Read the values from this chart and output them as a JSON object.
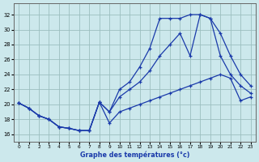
{
  "xlabel": "Graphe des températures (°c)",
  "bg_color": "#cce8ec",
  "grid_color": "#9bbfbf",
  "line_color": "#1a3aaa",
  "xlim": [
    -0.5,
    23.5
  ],
  "ylim": [
    15.0,
    33.5
  ],
  "xticks": [
    0,
    1,
    2,
    3,
    4,
    5,
    6,
    7,
    8,
    9,
    10,
    11,
    12,
    13,
    14,
    15,
    16,
    17,
    18,
    19,
    20,
    21,
    22,
    23
  ],
  "yticks": [
    16,
    18,
    20,
    22,
    24,
    26,
    28,
    30,
    32
  ],
  "line1_x": [
    0,
    1,
    2,
    3,
    4,
    5,
    6,
    7,
    8,
    9,
    10,
    11,
    12,
    13,
    14,
    15,
    16,
    17,
    18,
    19,
    20,
    21,
    22,
    23
  ],
  "line1_y": [
    20.2,
    19.5,
    18.5,
    18.0,
    17.0,
    16.8,
    16.5,
    16.5,
    20.3,
    17.5,
    19.0,
    19.5,
    20.0,
    20.5,
    21.0,
    21.5,
    22.0,
    22.5,
    23.0,
    23.5,
    24.0,
    23.5,
    20.5,
    21.0
  ],
  "line2_x": [
    0,
    1,
    2,
    3,
    4,
    5,
    6,
    7,
    8,
    9,
    10,
    11,
    12,
    13,
    14,
    15,
    16,
    17,
    18,
    19,
    20,
    21,
    22,
    23
  ],
  "line2_y": [
    20.2,
    19.5,
    18.5,
    18.0,
    17.0,
    16.8,
    16.5,
    16.5,
    20.3,
    19.0,
    21.0,
    22.0,
    23.0,
    24.5,
    26.5,
    28.0,
    29.5,
    26.5,
    32.0,
    31.5,
    26.5,
    24.0,
    22.5,
    21.5
  ],
  "line3_x": [
    0,
    1,
    2,
    3,
    4,
    5,
    6,
    7,
    8,
    9,
    10,
    11,
    12,
    13,
    14,
    15,
    16,
    17,
    18,
    19,
    20,
    21,
    22,
    23
  ],
  "line3_y": [
    20.2,
    19.5,
    18.5,
    18.0,
    17.0,
    16.8,
    16.5,
    16.5,
    20.3,
    19.0,
    22.0,
    23.0,
    25.0,
    27.5,
    31.5,
    31.5,
    31.5,
    32.0,
    32.0,
    31.5,
    29.5,
    26.5,
    24.0,
    22.5
  ]
}
